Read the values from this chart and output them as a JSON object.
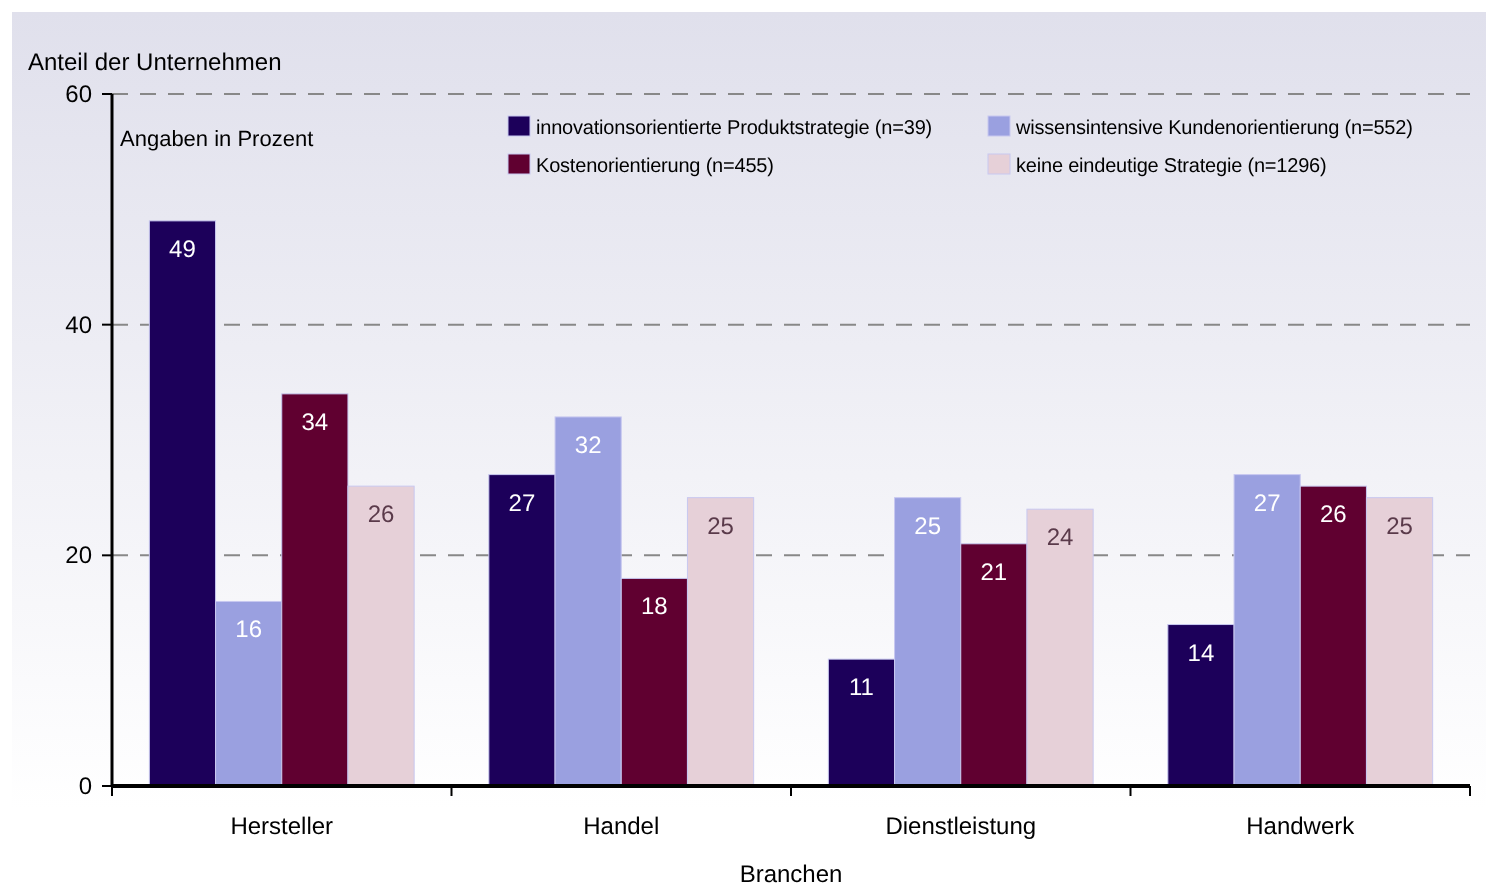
{
  "chart_data": {
    "type": "bar",
    "ylabel": "Anteil der Unternehmen",
    "xlabel": "Branchen",
    "annotations": [
      "Angaben in Prozent"
    ],
    "categories": [
      "Hersteller",
      "Handel",
      "Dienstleistung",
      "Handwerk"
    ],
    "series": [
      {
        "name": "innovationsorientierte Produktstrategie (n=39)",
        "color": "#1c005a",
        "values": [
          49,
          27,
          11,
          14
        ]
      },
      {
        "name": "wissensintensive Kundenorientierung (n=552)",
        "color": "#9aa0e0",
        "values": [
          16,
          32,
          25,
          27
        ]
      },
      {
        "name": "Kostenorientierung (n=455)",
        "color": "#600030",
        "values": [
          34,
          18,
          21,
          26
        ]
      },
      {
        "name": "keine eindeutige Strategie (n=1296)",
        "color": "#e6d0d8",
        "values": [
          26,
          25,
          24,
          25
        ]
      }
    ],
    "ylim": [
      0,
      60
    ],
    "yticks": [
      0,
      20,
      40,
      60
    ],
    "grid": "y",
    "legend": "top right",
    "data_labels": true
  }
}
